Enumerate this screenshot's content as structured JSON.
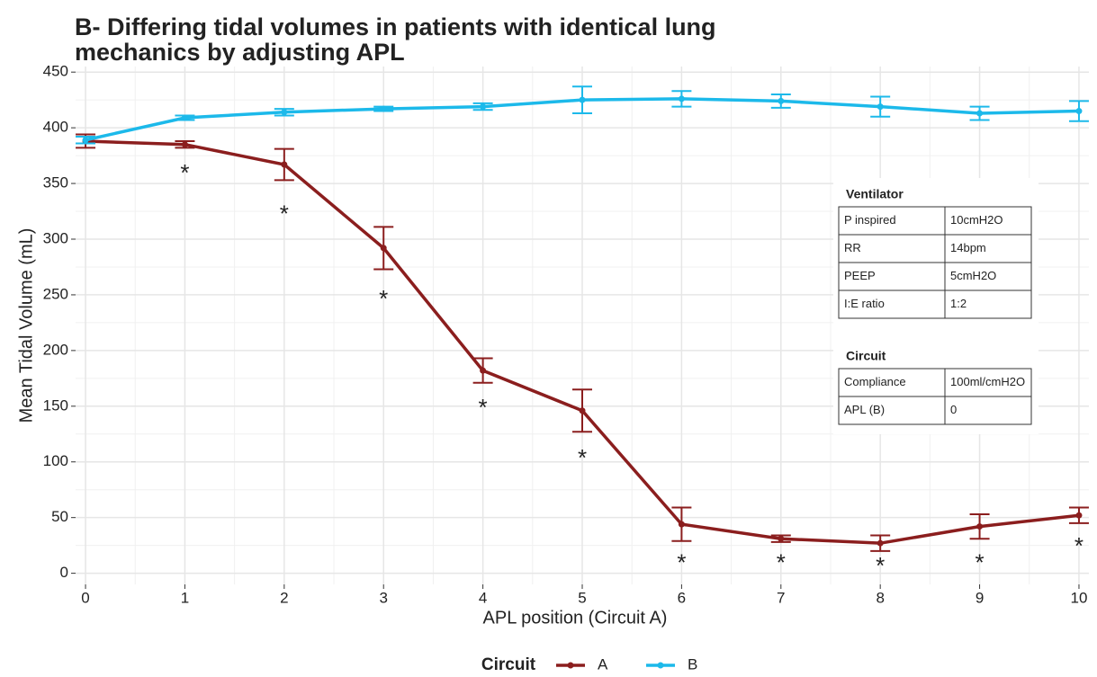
{
  "chart_data": {
    "type": "line",
    "title": [
      "B- Differing tidal volumes in patients with identical lung",
      "mechanics by adjusting APL"
    ],
    "x_label": "APL position (Circuit A)",
    "y_label": "Mean Tidal Volume (mL)",
    "x": [
      0,
      1,
      2,
      3,
      4,
      5,
      6,
      7,
      8,
      9,
      10
    ],
    "series": [
      {
        "name": "A",
        "color": "#8b1e1e",
        "values": [
          388,
          385,
          367,
          292,
          182,
          146,
          44,
          31,
          27,
          42,
          52
        ],
        "errors": [
          6,
          3,
          14,
          19,
          11,
          19,
          15,
          3,
          7,
          11,
          7
        ]
      },
      {
        "name": "B",
        "color": "#1cb9ea",
        "values": [
          389,
          409,
          414,
          417,
          419,
          425,
          426,
          424,
          419,
          413,
          415
        ],
        "errors": [
          3,
          2,
          3,
          2,
          3,
          12,
          7,
          6,
          9,
          6,
          9
        ]
      }
    ],
    "xlim": [
      -0.1,
      10.1
    ],
    "ylim": [
      -10,
      455
    ],
    "xticks": [
      0,
      1,
      2,
      3,
      4,
      5,
      6,
      7,
      8,
      9,
      10
    ],
    "yticks": [
      0,
      50,
      100,
      150,
      200,
      250,
      300,
      350,
      400,
      450
    ],
    "grid": true,
    "legend": {
      "title": "Circuit",
      "position": "bottom"
    },
    "annotations": [
      {
        "text": "*",
        "x": 1,
        "y": 363
      },
      {
        "text": "*",
        "x": 2,
        "y": 326
      },
      {
        "text": "*",
        "x": 3,
        "y": 250
      },
      {
        "text": "*",
        "x": 4,
        "y": 152
      },
      {
        "text": "*",
        "x": 5,
        "y": 107
      },
      {
        "text": "*",
        "x": 6,
        "y": 13
      },
      {
        "text": "*",
        "x": 7,
        "y": 13
      },
      {
        "text": "*",
        "x": 8,
        "y": 10
      },
      {
        "text": "*",
        "x": 9,
        "y": 13
      },
      {
        "text": "*",
        "x": 10,
        "y": 28
      }
    ],
    "inset": [
      {
        "title": "Ventilator",
        "rows": [
          [
            "P inspired",
            "10cmH2O"
          ],
          [
            "RR",
            "14bpm"
          ],
          [
            "PEEP",
            "5cmH2O"
          ],
          [
            "I:E ratio",
            "1:2"
          ]
        ]
      },
      {
        "title": "Circuit",
        "rows": [
          [
            "Compliance",
            "100ml/cmH2O"
          ],
          [
            "APL (B)",
            "0"
          ]
        ]
      }
    ]
  }
}
